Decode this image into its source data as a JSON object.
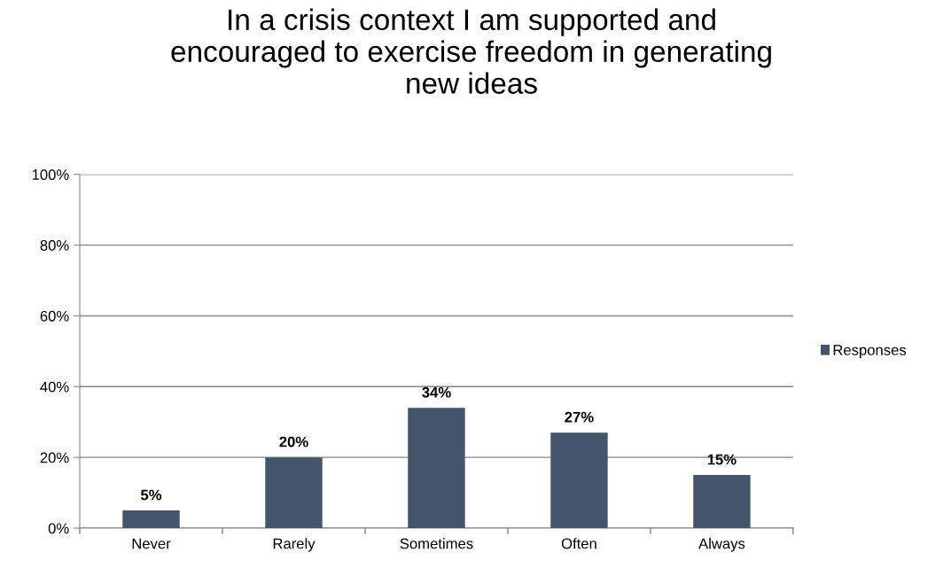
{
  "chart_data": {
    "type": "bar",
    "title": "In a crisis context I am supported and\nencouraged to exercise freedom in generating\nnew ideas",
    "categories": [
      "Never",
      "Rarely",
      "Sometimes",
      "Often",
      "Always"
    ],
    "series": [
      {
        "name": "Responses",
        "color": "#44546a",
        "values": [
          5,
          20,
          34,
          27,
          15
        ],
        "value_labels": [
          "5%",
          "20%",
          "34%",
          "27%",
          "15%"
        ]
      }
    ],
    "ylim": [
      0,
      100
    ],
    "yticks": [
      {
        "value": 0,
        "label": "0%"
      },
      {
        "value": 20,
        "label": "20%"
      },
      {
        "value": 40,
        "label": "40%"
      },
      {
        "value": 60,
        "label": "60%"
      },
      {
        "value": 80,
        "label": "80%"
      },
      {
        "value": 100,
        "label": "100%"
      }
    ],
    "grid": "y",
    "legend": "right"
  }
}
